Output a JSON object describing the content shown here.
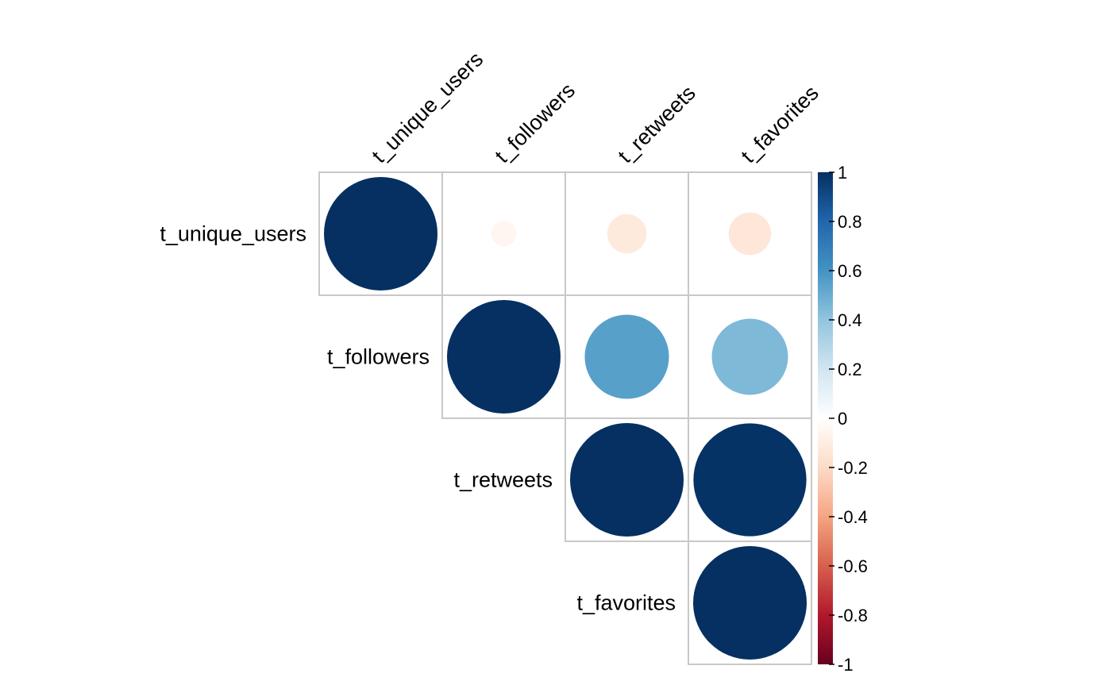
{
  "chart_data": {
    "type": "heatmap",
    "variables": [
      "t_unique_users",
      "t_followers",
      "t_retweets",
      "t_favorites"
    ],
    "matrix_half": "upper",
    "matrix": [
      [
        1.0,
        -0.05,
        -0.12,
        -0.14
      ],
      [
        null,
        1.0,
        0.55,
        0.45
      ],
      [
        null,
        null,
        1.0,
        0.99
      ],
      [
        null,
        null,
        null,
        1.0
      ]
    ],
    "colorbar": {
      "range": [
        -1,
        1
      ],
      "ticks": [
        "-1",
        "-0.8",
        "-0.6",
        "-0.4",
        "-0.2",
        "0",
        "0.2",
        "0.4",
        "0.6",
        "0.8",
        "1"
      ],
      "colors": [
        "#67001F",
        "#B2182B",
        "#D6604D",
        "#F4A582",
        "#FDDBC7",
        "#FFFFFF",
        "#D1E5F0",
        "#92C5DE",
        "#4393C3",
        "#2166AC",
        "#053061"
      ]
    },
    "grid_color": "#c8c8c8"
  }
}
